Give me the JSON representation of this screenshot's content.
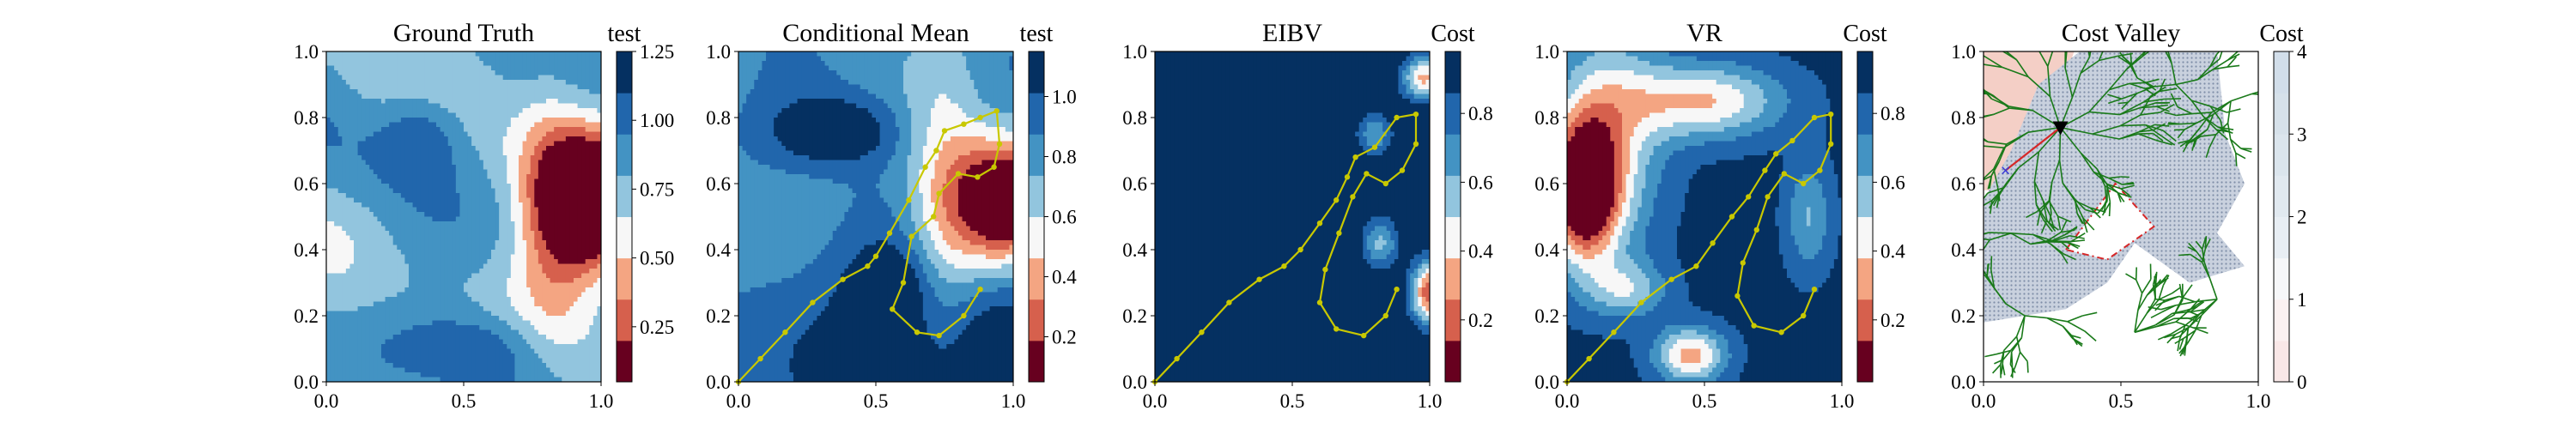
{
  "figure": {
    "panels": [
      {
        "title": "Ground Truth",
        "colorbar_label": "test",
        "colorbar_ticks": [
          "0.25",
          "0.50",
          "0.75",
          "1.00",
          "1.25"
        ],
        "x_ticks": [
          "0.0",
          "0.5",
          "1.0"
        ],
        "y_ticks": [
          "0.0",
          "0.2",
          "0.4",
          "0.6",
          "0.8",
          "1.0"
        ]
      },
      {
        "title": "Conditional Mean",
        "colorbar_label": "test",
        "colorbar_ticks": [
          "0.2",
          "0.4",
          "0.6",
          "0.8",
          "1.0"
        ],
        "x_ticks": [
          "0.0",
          "0.5",
          "1.0"
        ],
        "y_ticks": [
          "0.0",
          "0.2",
          "0.4",
          "0.6",
          "0.8",
          "1.0"
        ]
      },
      {
        "title": "EIBV",
        "colorbar_label": "Cost",
        "colorbar_ticks": [
          "0.2",
          "0.4",
          "0.6",
          "0.8"
        ],
        "x_ticks": [
          "0.0",
          "0.5",
          "1.0"
        ],
        "y_ticks": [
          "0.0",
          "0.2",
          "0.4",
          "0.6",
          "0.8",
          "1.0"
        ]
      },
      {
        "title": "VR",
        "colorbar_label": "Cost",
        "colorbar_ticks": [
          "0.2",
          "0.4",
          "0.6",
          "0.8"
        ],
        "x_ticks": [
          "0.0",
          "0.5",
          "1.0"
        ],
        "y_ticks": [
          "0.0",
          "0.2",
          "0.4",
          "0.6",
          "0.8",
          "1.0"
        ]
      },
      {
        "title": "Cost Valley",
        "colorbar_label": "Cost",
        "colorbar_ticks": [
          "0",
          "1",
          "2",
          "3",
          "4"
        ],
        "x_ticks": [
          "0.0",
          "0.5",
          "1.0"
        ],
        "y_ticks": [
          "0.0",
          "0.2",
          "0.4",
          "0.6",
          "0.8",
          "1.0"
        ]
      }
    ]
  },
  "colors": {
    "dark_red": "#67001f",
    "red": "#d6604d",
    "light_red": "#f4a582",
    "pale": "#f7f7f7",
    "light_blue": "#92c5de",
    "blue": "#4393c3",
    "mid_blue": "#2166ac",
    "dark_blue": "#053061",
    "trajectory": "#c8c800",
    "tree": "#1a7a1a",
    "hatch": "#7f8fa8"
  },
  "chart_data": [
    {
      "type": "heatmap",
      "title": "Ground Truth",
      "xlim": [
        0,
        1
      ],
      "ylim": [
        0,
        1
      ],
      "colorbar": {
        "label": "test",
        "range": [
          0.05,
          1.25
        ],
        "ticks": [
          0.25,
          0.5,
          0.75,
          1.0,
          1.25
        ],
        "colormap": "RdBu"
      },
      "features": [
        {
          "kind": "low-value region",
          "center": [
            0.97,
            0.55
          ],
          "value": 0.1
        },
        {
          "kind": "high-value regions",
          "values_approx": 1.1
        }
      ]
    },
    {
      "type": "heatmap",
      "title": "Conditional Mean",
      "xlim": [
        0,
        1
      ],
      "ylim": [
        0,
        1
      ],
      "colorbar": {
        "label": "test",
        "range": [
          0.05,
          1.15
        ],
        "ticks": [
          0.2,
          0.4,
          0.6,
          0.8,
          1.0
        ],
        "colormap": "RdBu"
      },
      "trajectory": [
        [
          0.0,
          0.0
        ],
        [
          0.08,
          0.07
        ],
        [
          0.17,
          0.15
        ],
        [
          0.27,
          0.24
        ],
        [
          0.38,
          0.31
        ],
        [
          0.47,
          0.35
        ],
        [
          0.5,
          0.38
        ],
        [
          0.55,
          0.45
        ],
        [
          0.62,
          0.55
        ],
        [
          0.68,
          0.65
        ],
        [
          0.72,
          0.7
        ],
        [
          0.75,
          0.76
        ],
        [
          0.82,
          0.78
        ],
        [
          0.88,
          0.8
        ],
        [
          0.94,
          0.82
        ],
        [
          0.95,
          0.72
        ],
        [
          0.93,
          0.65
        ],
        [
          0.87,
          0.62
        ],
        [
          0.8,
          0.63
        ],
        [
          0.73,
          0.57
        ],
        [
          0.71,
          0.5
        ],
        [
          0.63,
          0.44
        ],
        [
          0.6,
          0.3
        ],
        [
          0.56,
          0.22
        ],
        [
          0.65,
          0.15
        ],
        [
          0.73,
          0.14
        ],
        [
          0.82,
          0.2
        ],
        [
          0.88,
          0.28
        ]
      ]
    },
    {
      "type": "heatmap",
      "title": "EIBV",
      "xlim": [
        0,
        1
      ],
      "ylim": [
        0,
        1
      ],
      "colorbar": {
        "label": "Cost",
        "range": [
          0.02,
          0.98
        ],
        "ticks": [
          0.2,
          0.4,
          0.6,
          0.8
        ],
        "colormap": "RdBu"
      },
      "trajectory": [
        [
          0.0,
          0.0
        ],
        [
          0.08,
          0.07
        ],
        [
          0.17,
          0.15
        ],
        [
          0.27,
          0.24
        ],
        [
          0.38,
          0.31
        ],
        [
          0.47,
          0.35
        ],
        [
          0.53,
          0.4
        ],
        [
          0.6,
          0.48
        ],
        [
          0.66,
          0.55
        ],
        [
          0.7,
          0.62
        ],
        [
          0.73,
          0.68
        ],
        [
          0.8,
          0.71
        ],
        [
          0.88,
          0.8
        ],
        [
          0.95,
          0.81
        ],
        [
          0.95,
          0.72
        ],
        [
          0.9,
          0.64
        ],
        [
          0.84,
          0.6
        ],
        [
          0.77,
          0.63
        ],
        [
          0.72,
          0.56
        ],
        [
          0.67,
          0.45
        ],
        [
          0.62,
          0.34
        ],
        [
          0.6,
          0.24
        ],
        [
          0.66,
          0.16
        ],
        [
          0.76,
          0.14
        ],
        [
          0.84,
          0.2
        ],
        [
          0.88,
          0.28
        ]
      ]
    },
    {
      "type": "heatmap",
      "title": "VR",
      "xlim": [
        0,
        1
      ],
      "ylim": [
        0,
        1
      ],
      "colorbar": {
        "label": "Cost",
        "range": [
          0.02,
          0.98
        ],
        "ticks": [
          0.2,
          0.4,
          0.6,
          0.8
        ],
        "colormap": "RdBu"
      },
      "trajectory": [
        [
          0.0,
          0.0
        ],
        [
          0.08,
          0.07
        ],
        [
          0.17,
          0.15
        ],
        [
          0.27,
          0.24
        ],
        [
          0.38,
          0.31
        ],
        [
          0.47,
          0.35
        ],
        [
          0.53,
          0.42
        ],
        [
          0.6,
          0.5
        ],
        [
          0.66,
          0.56
        ],
        [
          0.72,
          0.64
        ],
        [
          0.76,
          0.69
        ],
        [
          0.82,
          0.73
        ],
        [
          0.9,
          0.8
        ],
        [
          0.96,
          0.81
        ],
        [
          0.96,
          0.72
        ],
        [
          0.92,
          0.64
        ],
        [
          0.86,
          0.6
        ],
        [
          0.79,
          0.63
        ],
        [
          0.73,
          0.56
        ],
        [
          0.69,
          0.46
        ],
        [
          0.64,
          0.36
        ],
        [
          0.62,
          0.26
        ],
        [
          0.68,
          0.17
        ],
        [
          0.78,
          0.15
        ],
        [
          0.86,
          0.2
        ],
        [
          0.9,
          0.28
        ]
      ]
    },
    {
      "type": "heatmap",
      "title": "Cost Valley",
      "xlim": [
        0,
        1
      ],
      "ylim": [
        0,
        1
      ],
      "colorbar": {
        "label": "Cost",
        "range": [
          0,
          4
        ],
        "ticks": [
          0,
          1,
          2,
          3,
          4
        ],
        "colormap": "Reds"
      },
      "markers": {
        "current_location": [
          0.28,
          0.77
        ],
        "next_waypoint": [
          0.08,
          0.64
        ]
      },
      "obstacle_polygon": [
        [
          0.3,
          0.4
        ],
        [
          0.48,
          0.6
        ],
        [
          0.62,
          0.47
        ],
        [
          0.45,
          0.37
        ]
      ]
    }
  ]
}
